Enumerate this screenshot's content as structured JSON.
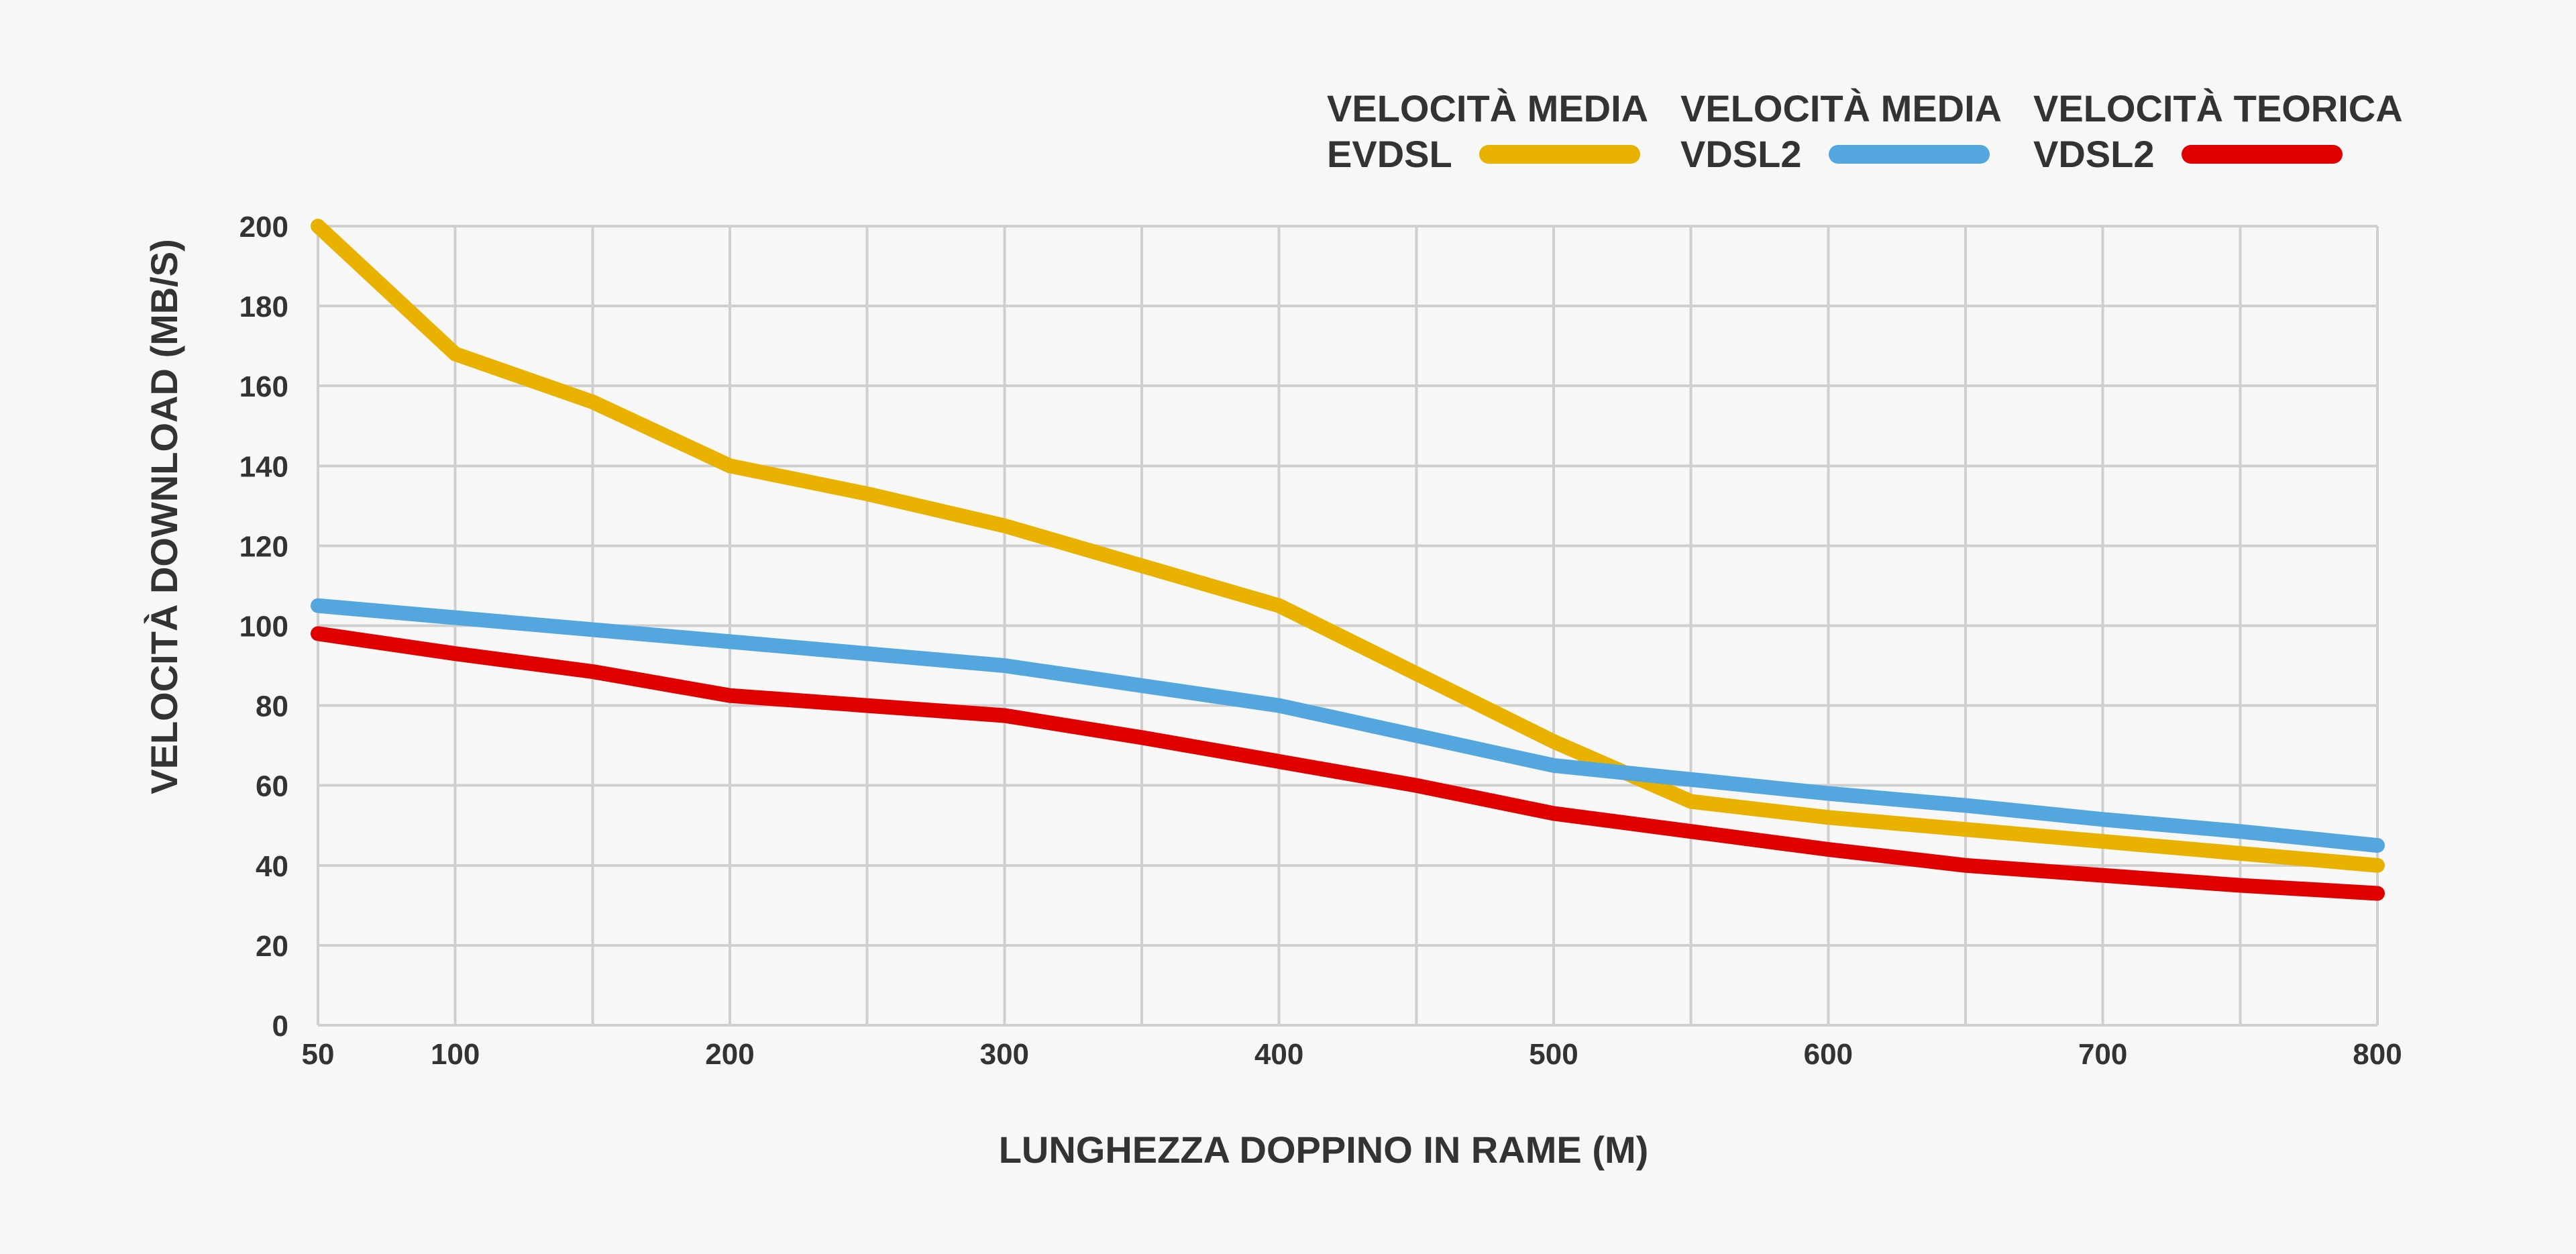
{
  "chart_data": {
    "type": "line",
    "title": "",
    "xlabel": "LUNGHEZZA DOPPINO IN RAME (M)",
    "ylabel": "VELOCITÀ DOWNLOAD (MB/S)",
    "x": [
      50,
      100,
      150,
      200,
      250,
      300,
      350,
      400,
      450,
      500,
      550,
      600,
      650,
      700,
      750,
      800
    ],
    "xlim": [
      50,
      800
    ],
    "ylim": [
      0,
      200
    ],
    "x_ticks": [
      50,
      100,
      200,
      300,
      400,
      500,
      600,
      700,
      800
    ],
    "x_gridlines": [
      50,
      100,
      150,
      200,
      250,
      300,
      350,
      400,
      450,
      500,
      550,
      600,
      650,
      700,
      750,
      800
    ],
    "y_ticks": [
      0,
      20,
      40,
      60,
      80,
      100,
      120,
      140,
      160,
      180,
      200
    ],
    "grid": true,
    "legend_position": "top-right",
    "series": [
      {
        "name": "VELOCITÀ MEDIA EVDSL",
        "name_line1": "VELOCITÀ MEDIA",
        "name_line2": "EVDSL",
        "color": "#e9b200",
        "values": [
          200,
          168,
          156,
          140,
          133,
          125,
          115,
          105,
          88,
          71,
          56,
          52,
          49,
          46,
          43,
          40
        ]
      },
      {
        "name": "VELOCITÀ MEDIA VDSL2",
        "name_line1": "VELOCITÀ MEDIA",
        "name_line2": "VDSL2",
        "color": "#53a7de",
        "values": [
          105,
          102,
          99,
          96,
          93,
          90,
          85,
          80,
          72.5,
          65,
          61.5,
          58,
          55,
          51.5,
          48.5,
          45
        ]
      },
      {
        "name": "VELOCITÀ TEORICA VDSL2",
        "name_line1": "VELOCITÀ TEORICA",
        "name_line2": "VDSL2",
        "color": "#e00000",
        "values": [
          98,
          93,
          88.5,
          82.5,
          80,
          77.5,
          72,
          66,
          60,
          53,
          48.5,
          44,
          40,
          37.5,
          35,
          33
        ]
      }
    ]
  }
}
